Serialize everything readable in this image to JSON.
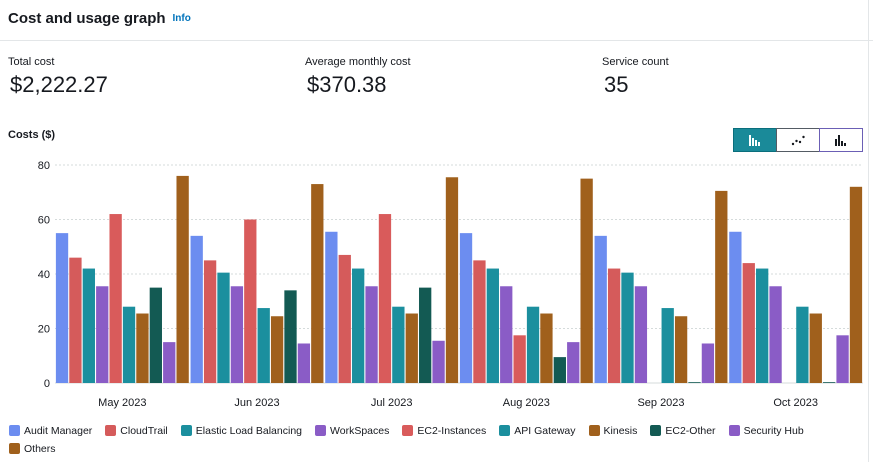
{
  "header": {
    "title": "Cost and usage graph",
    "info": "Info"
  },
  "metrics": [
    {
      "label": "Total cost",
      "value": "$2,222.27"
    },
    {
      "label": "Average monthly cost",
      "value": "$370.38"
    },
    {
      "label": "Service count",
      "value": "35"
    }
  ],
  "view_toggle": {
    "options": [
      "bar-chart-icon",
      "line-chart-icon",
      "stacked-bar-chart-icon"
    ],
    "selected": "bar-chart-icon"
  },
  "chart_data": {
    "type": "bar",
    "ylabel": "Costs ($)",
    "ylim": [
      0,
      80
    ],
    "yticks": [
      0,
      20,
      40,
      60,
      80
    ],
    "grid": true,
    "legend_position": "bottom",
    "categories": [
      "May 2023",
      "Jun 2023",
      "Jul 2023",
      "Aug 2023",
      "Sep 2023",
      "Oct 2023"
    ],
    "series": [
      {
        "name": "Audit Manager",
        "color": "#688ae8",
        "values": [
          55,
          54,
          55.5,
          55,
          54,
          55.5
        ]
      },
      {
        "name": "CloudTrail",
        "color": "#c33d69",
        "values": [
          46,
          45,
          47,
          45,
          42,
          44
        ]
      },
      {
        "name": "Elastic Load Balancing",
        "color": "#2ea597",
        "values": [
          42,
          40.5,
          42,
          42,
          40.5,
          42
        ]
      },
      {
        "name": "WorkSpaces",
        "color": "#8456ce",
        "values": [
          35.5,
          35.5,
          35.5,
          35.5,
          35.5,
          35.5
        ]
      },
      {
        "name": "EC2-Instances",
        "color": "#e07941",
        "values": [
          62,
          60,
          62,
          17.5,
          0,
          0
        ]
      },
      {
        "name": "API Gateway",
        "color": "#3759ce",
        "values": [
          28,
          27.5,
          28,
          28,
          27.5,
          28
        ]
      },
      {
        "name": "Kinesis",
        "color": "#962249",
        "values": [
          25.5,
          24.5,
          25.5,
          25.5,
          24.5,
          25.5
        ]
      },
      {
        "name": "EC2-Other",
        "color": "#096f64",
        "values": [
          35,
          34,
          35,
          9.5,
          0.3,
          0.3
        ]
      },
      {
        "name": "Security Hub",
        "color": "#6237a7",
        "values": [
          15,
          14.5,
          15.5,
          15,
          14.5,
          17.5
        ]
      },
      {
        "name": "Others",
        "color": "#a84401",
        "values": [
          76,
          73,
          75.5,
          75,
          70.5,
          72
        ]
      }
    ]
  },
  "render_colors": {
    "Audit Manager": "#6c8df0",
    "CloudTrail": "#d55b5b",
    "Elastic Load Balancing": "#1b8f9e",
    "WorkSpaces": "#8a5cc6",
    "EC2-Instances": "#d95b5b",
    "API Gateway": "#1b8f9e",
    "Kinesis": "#a0601c",
    "EC2-Other": "#135a53",
    "Security Hub": "#8a5cc6",
    "Others": "#a0601c"
  }
}
